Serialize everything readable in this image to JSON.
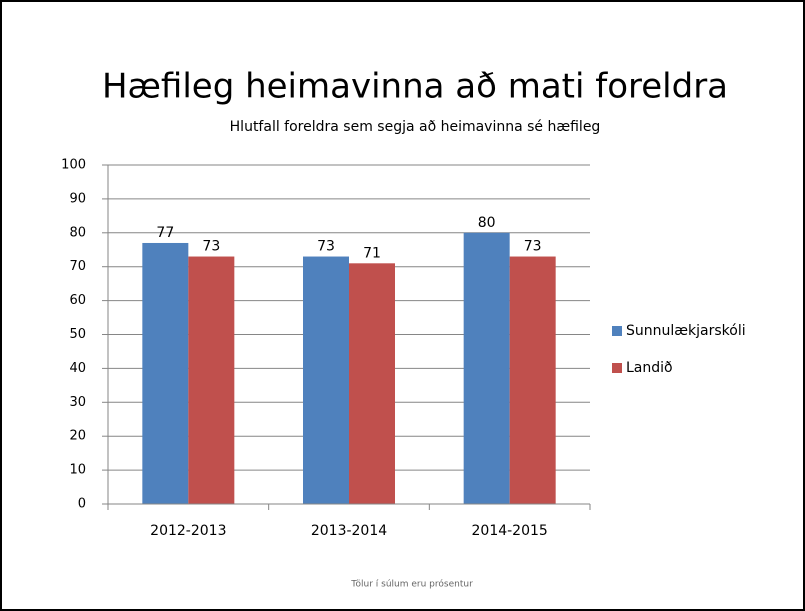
{
  "chart_data": {
    "type": "bar",
    "title": "Hæfileg heimavinna að mati foreldra",
    "subtitle": "Hlutfall foreldra sem segja að heimavinna sé hæfileg",
    "footnote": "Tölur í súlum eru prósentur",
    "categories": [
      "2012-2013",
      "2013-2014",
      "2014-2015"
    ],
    "series": [
      {
        "name": "Sunnulækjarskóli",
        "color": "#4f81bd",
        "values": [
          77,
          73,
          80
        ]
      },
      {
        "name": "Landið",
        "color": "#c0504d",
        "values": [
          73,
          71,
          73
        ]
      }
    ],
    "ylim": [
      0,
      100
    ],
    "yticks": [
      0,
      10,
      20,
      30,
      40,
      50,
      60,
      70,
      80,
      90,
      100
    ],
    "grid": true,
    "legend": "right"
  }
}
